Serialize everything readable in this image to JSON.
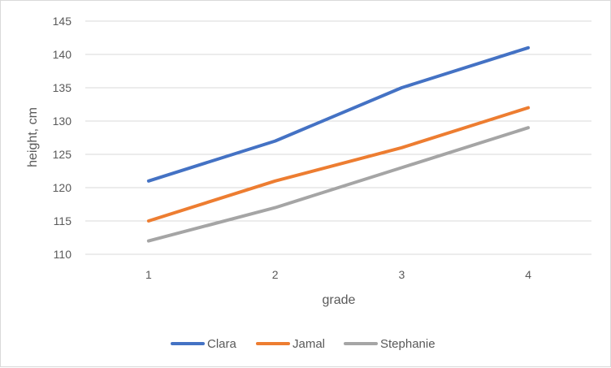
{
  "chart_data": {
    "type": "line",
    "title": "",
    "xlabel": "grade",
    "ylabel": "height, cm",
    "x": [
      1,
      2,
      3,
      4
    ],
    "ylim": [
      110,
      145
    ],
    "yticks": [
      110,
      115,
      120,
      125,
      130,
      135,
      140,
      145
    ],
    "grid": "horizontal",
    "legend_position": "bottom",
    "series": [
      {
        "name": "Clara",
        "color": "#4472c4",
        "values": [
          121,
          127,
          135,
          141
        ]
      },
      {
        "name": "Jamal",
        "color": "#ed7d31",
        "values": [
          115,
          121,
          126,
          132
        ]
      },
      {
        "name": "Stephanie",
        "color": "#a5a5a5",
        "values": [
          112,
          117,
          123,
          129
        ]
      }
    ]
  }
}
